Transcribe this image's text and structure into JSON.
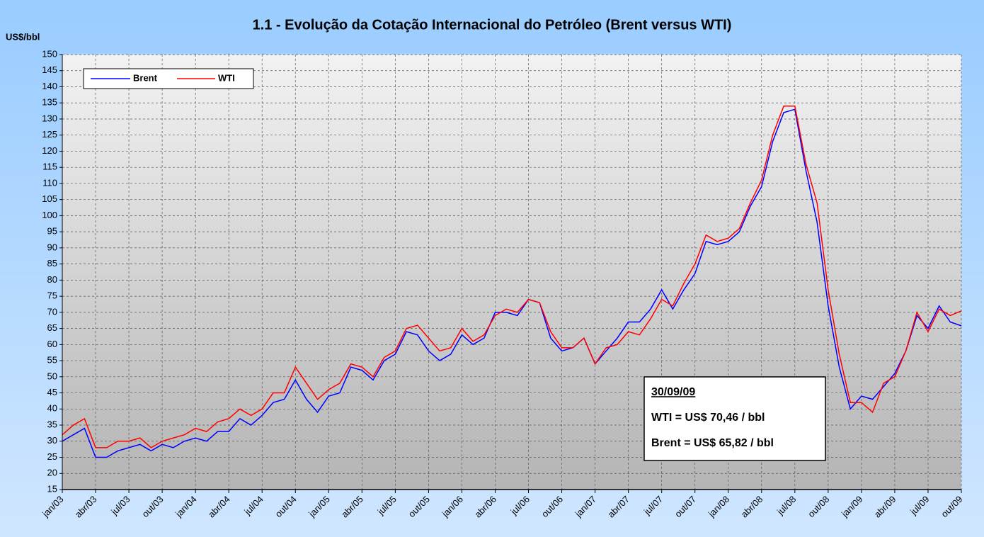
{
  "chart_data": {
    "type": "line",
    "title": "1.1 - Evolução da Cotação Internacional do Petróleo (Brent versus WTI)",
    "y_label": "US$/bbl",
    "categories": [
      "jan/03",
      null,
      null,
      "abr/03",
      null,
      null,
      "jul/03",
      null,
      null,
      "out/03",
      null,
      null,
      "jan/04",
      null,
      null,
      "abr/04",
      null,
      null,
      "jul/04",
      null,
      null,
      "out/04",
      null,
      null,
      "jan/05",
      null,
      null,
      "abr/05",
      null,
      null,
      "jul/05",
      null,
      null,
      "out/05",
      null,
      null,
      "jan/06",
      null,
      null,
      "abr/06",
      null,
      null,
      "jul/06",
      null,
      null,
      "out/06",
      null,
      null,
      "jan/07",
      null,
      null,
      "abr/07",
      null,
      null,
      "jul/07",
      null,
      null,
      "out/07",
      null,
      null,
      "jan/08",
      null,
      null,
      "abr/08",
      null,
      null,
      "jul/08",
      null,
      null,
      "out/08",
      null,
      null,
      "jan/09",
      null,
      null,
      "abr/09",
      null,
      null,
      "jul/09",
      null,
      null,
      "out/09"
    ],
    "series": [
      {
        "name": "Brent",
        "color": "#0000ff",
        "values": [
          30,
          32,
          34,
          25,
          25,
          27,
          28,
          29,
          27,
          29,
          28,
          30,
          31,
          30,
          33,
          33,
          37,
          35,
          38,
          42,
          43,
          49,
          43,
          39,
          44,
          45,
          53,
          52,
          49,
          55,
          57,
          64,
          63,
          58,
          55,
          57,
          63,
          60,
          62,
          70,
          70,
          69,
          74,
          73,
          62,
          58,
          59,
          62,
          54,
          58,
          62,
          67,
          67,
          71,
          77,
          71,
          77,
          82,
          92,
          91,
          92,
          95,
          103,
          109,
          123,
          132,
          133,
          114,
          98,
          72,
          53,
          40,
          44,
          43,
          47,
          51,
          58,
          69,
          65,
          72,
          67,
          65.82
        ]
      },
      {
        "name": "WTI",
        "color": "#ff0000",
        "values": [
          32,
          35,
          37,
          28,
          28,
          30,
          30,
          31,
          28,
          30,
          31,
          32,
          34,
          33,
          36,
          37,
          40,
          38,
          40,
          45,
          45,
          53,
          48,
          43,
          46,
          48,
          54,
          53,
          50,
          56,
          58,
          65,
          66,
          62,
          58,
          59,
          65,
          61,
          63,
          69,
          71,
          70,
          74,
          73,
          64,
          59,
          59,
          62,
          54,
          59,
          60,
          64,
          63,
          68,
          74,
          72,
          79,
          85,
          94,
          92,
          93,
          96,
          104,
          111,
          125,
          134,
          134,
          116,
          104,
          77,
          57,
          42,
          42,
          39,
          48,
          50,
          58,
          70,
          64,
          71,
          69,
          70.46
        ]
      }
    ],
    "ylim": [
      15,
      150
    ],
    "yticks": [
      15,
      20,
      25,
      30,
      35,
      40,
      45,
      50,
      55,
      60,
      65,
      70,
      75,
      80,
      85,
      90,
      95,
      100,
      105,
      110,
      115,
      120,
      125,
      130,
      135,
      140,
      145,
      150
    ],
    "grid": true,
    "legend": "top-left",
    "annotation": {
      "date": "30/09/09",
      "wti": "WTI = US$ 70,46 / bbl",
      "brent": "Brent = US$ 65,82 / bbl"
    }
  }
}
